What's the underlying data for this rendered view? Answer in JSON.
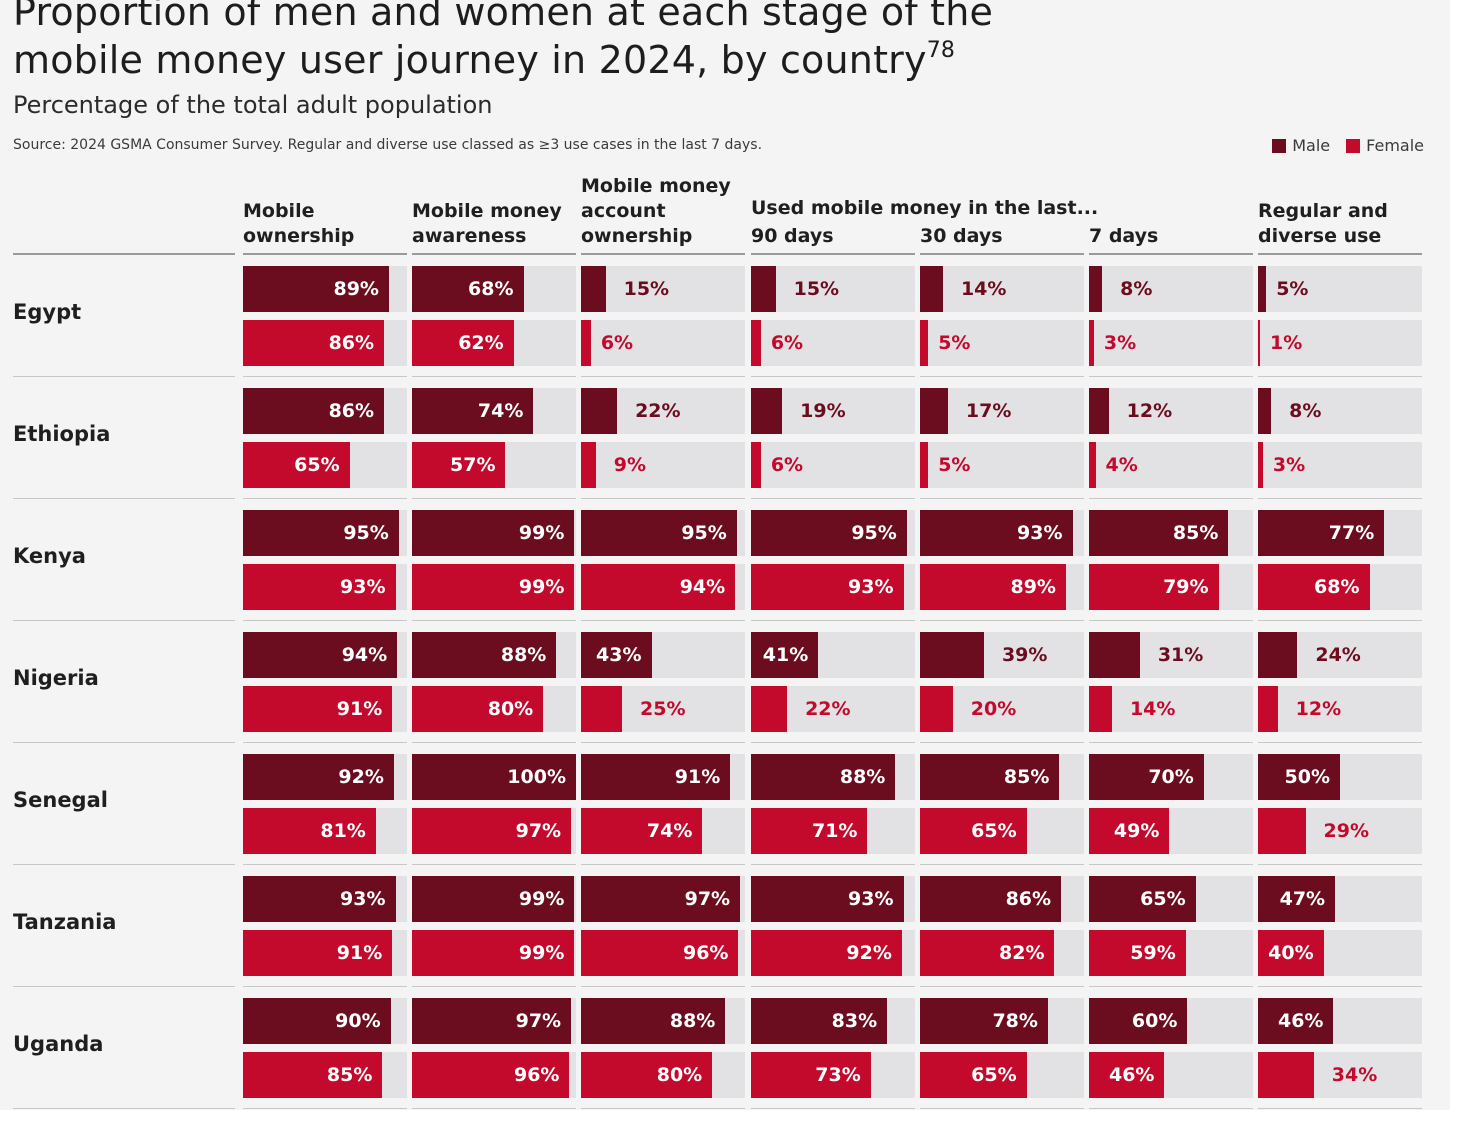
{
  "title_line1": "Proportion of men and women at each stage of the",
  "title_line2": "mobile money user journey in 2024, by country",
  "title_footnote": "78",
  "subtitle": "Percentage of the total adult population",
  "source": "Source: 2024 GSMA Consumer Survey. Regular and diverse use classed as ≥3 use cases in the last 7 days.",
  "legend": [
    {
      "label": "Male",
      "color": "#6b0d1f"
    },
    {
      "label": "Female",
      "color": "#c3092c"
    }
  ],
  "colors": {
    "male": "#6b0d1f",
    "female": "#c3092c",
    "track": "#e2e2e4"
  },
  "chart_data": {
    "type": "bar",
    "orientation": "horizontal",
    "title": "Proportion of men and women at each stage of the mobile money user journey in 2024, by country",
    "subtitle": "Percentage of the total adult population",
    "value_range": [
      0,
      100
    ],
    "unit": "%",
    "legend_position": "top-right",
    "group_header": "Used mobile money in the last...",
    "columns": [
      {
        "lines": [
          "Mobile",
          "ownership"
        ]
      },
      {
        "lines": [
          "Mobile money",
          "awareness"
        ]
      },
      {
        "lines": [
          "Mobile money",
          "account",
          "ownership"
        ]
      },
      {
        "lines": [
          "90 days"
        ]
      },
      {
        "lines": [
          "30 days"
        ]
      },
      {
        "lines": [
          "7 days"
        ]
      },
      {
        "lines": [
          "Regular and",
          "diverse use"
        ]
      }
    ],
    "countries": [
      "Egypt",
      "Ethiopia",
      "Kenya",
      "Nigeria",
      "Senegal",
      "Tanzania",
      "Uganda"
    ],
    "series": [
      {
        "name": "Male",
        "values": [
          [
            89,
            68,
            15,
            15,
            14,
            8,
            5
          ],
          [
            86,
            74,
            22,
            19,
            17,
            12,
            8
          ],
          [
            95,
            99,
            95,
            95,
            93,
            85,
            77
          ],
          [
            94,
            88,
            43,
            41,
            39,
            31,
            24
          ],
          [
            92,
            100,
            91,
            88,
            85,
            70,
            50
          ],
          [
            93,
            99,
            97,
            93,
            86,
            65,
            47
          ],
          [
            90,
            97,
            88,
            83,
            78,
            60,
            46
          ]
        ]
      },
      {
        "name": "Female",
        "values": [
          [
            86,
            62,
            6,
            6,
            5,
            3,
            1
          ],
          [
            65,
            57,
            9,
            6,
            5,
            4,
            3
          ],
          [
            93,
            99,
            94,
            93,
            89,
            79,
            68
          ],
          [
            91,
            80,
            25,
            22,
            20,
            14,
            12
          ],
          [
            81,
            97,
            74,
            71,
            65,
            49,
            29
          ],
          [
            91,
            99,
            96,
            92,
            82,
            59,
            40
          ],
          [
            85,
            96,
            80,
            73,
            65,
            46,
            34
          ]
        ]
      }
    ]
  }
}
